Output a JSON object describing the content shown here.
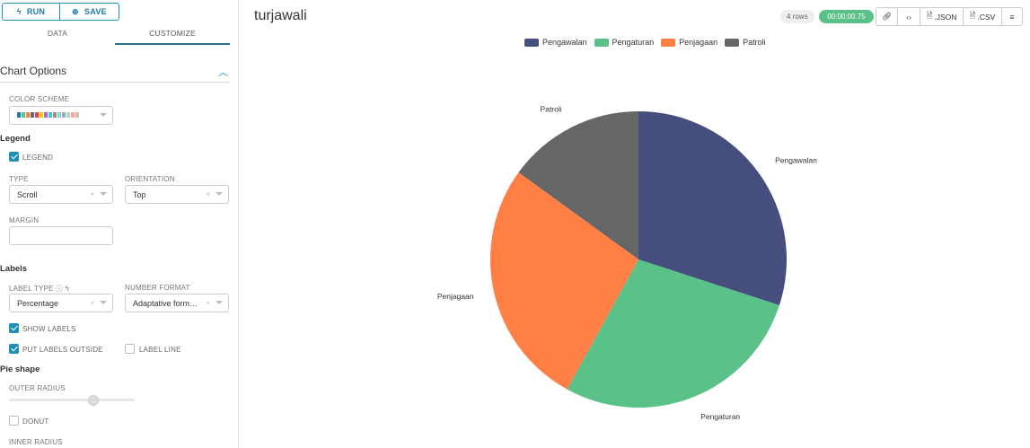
{
  "toolbar": {
    "run_label": "RUN",
    "save_label": "SAVE"
  },
  "tabs": [
    {
      "label": "DATA"
    },
    {
      "label": "CUSTOMIZE",
      "active": true
    }
  ],
  "panel": {
    "section_title": "Chart Options",
    "color_scheme_label": "COLOR SCHEME",
    "color_swatches": [
      "#1f77b4",
      "#5ac189",
      "#ff7f44",
      "#666666",
      "#e04355",
      "#fcc700",
      "#a868b7",
      "#3ccccb",
      "#a38f79",
      "#8fd3e4",
      "#a1a6bd",
      "#acd7c8",
      "#ffa38b",
      "#c9bfb6"
    ],
    "legend_header": "Legend",
    "legend_checkbox": "LEGEND",
    "type_label": "TYPE",
    "type_value": "Scroll",
    "orientation_label": "ORIENTATION",
    "orientation_value": "Top",
    "margin_label": "MARGIN",
    "margin_value": "",
    "labels_header": "Labels",
    "label_type_label": "LABEL TYPE",
    "label_type_value": "Percentage",
    "number_format_label": "NUMBER FORMAT",
    "number_format_value": "Adaptative form…",
    "show_labels": "SHOW LABELS",
    "put_labels_outside": "PUT LABELS OUTSIDE",
    "label_line": "LABEL LINE",
    "pie_shape_header": "Pie shape",
    "outer_radius_label": "OUTER RADIUS",
    "outer_radius_fraction": 0.67,
    "donut": "DONUT",
    "inner_radius_label": "INNER RADIUS"
  },
  "header": {
    "title": "turjawali",
    "rows_badge": "4 rows",
    "time_badge": "00:00:00.75",
    "json_label": ".JSON",
    "csv_label": ".CSV"
  },
  "chart_data": {
    "type": "pie",
    "legend_position": "top",
    "categories": [
      "Pengawalan",
      "Pengaturan",
      "Penjagaan",
      "Patroli"
    ],
    "values": [
      30,
      28,
      27,
      15
    ],
    "colors": [
      "#454e7c",
      "#5ac189",
      "#ff7f44",
      "#666666"
    ]
  }
}
